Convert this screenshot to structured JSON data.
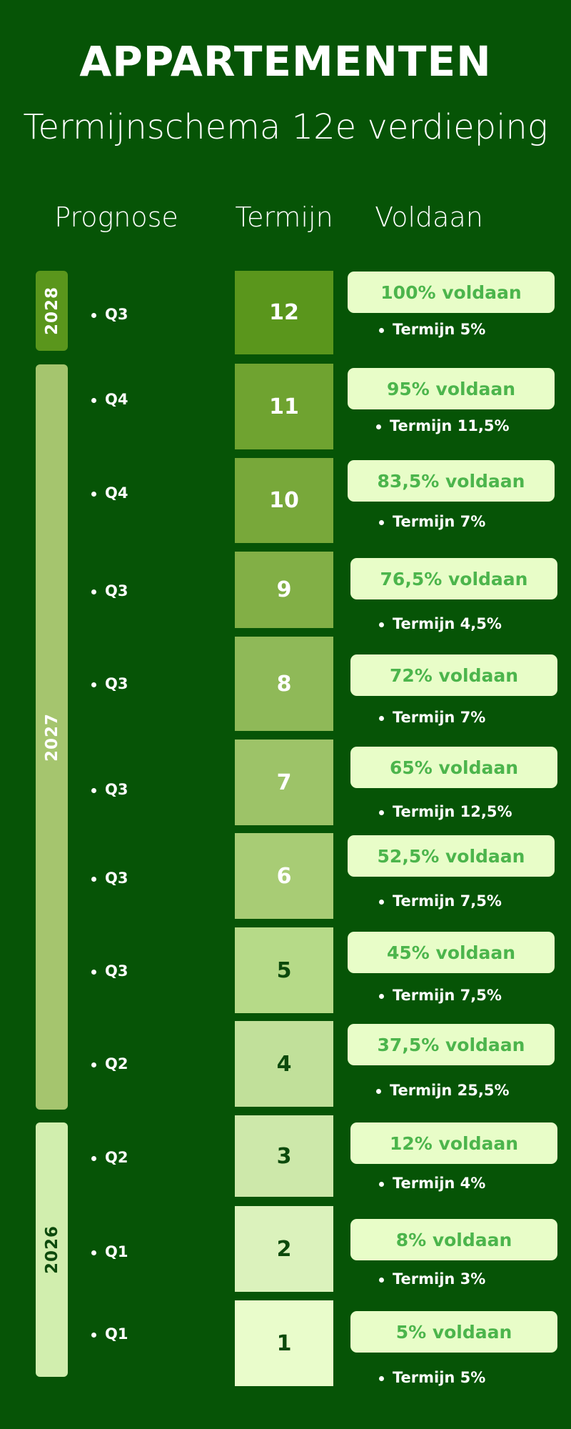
{
  "header": {
    "title": "APPARTEMENTEN",
    "subtitle": "Termijnschema 12e verdieping",
    "columns": [
      "Prognose",
      "Termijn",
      "Voldaan"
    ]
  },
  "colors": {
    "background": "#065406",
    "pill_background": "#e8fdc8",
    "pill_text": "#4cb54c"
  },
  "years": [
    {
      "label": "2028",
      "color": "#5a961c",
      "text_color": "#ffffff"
    },
    {
      "label": "2027",
      "color": "#a5c56e",
      "text_color": "#ffffff"
    },
    {
      "label": "2026",
      "color": "#d1eeae",
      "text_color": "#0c4a0c"
    }
  ],
  "rows": [
    {
      "termijn": "12",
      "quarter": "Q3",
      "voldaan": "100% voldaan",
      "termijn_pct": "Termijn 5%",
      "color": "#5a961c",
      "text_color": "#ffffff"
    },
    {
      "termijn": "11",
      "quarter": "Q4",
      "voldaan": "95% voldaan",
      "termijn_pct": "Termijn 11,5%",
      "color": "#6fa330",
      "text_color": "#ffffff"
    },
    {
      "termijn": "10",
      "quarter": "Q4",
      "voldaan": "83,5% voldaan",
      "termijn_pct": "Termijn 7%",
      "color": "#78a83a",
      "text_color": "#ffffff"
    },
    {
      "termijn": "9",
      "quarter": "Q3",
      "voldaan": "76,5% voldaan",
      "termijn_pct": "Termijn 4,5%",
      "color": "#82af46",
      "text_color": "#ffffff"
    },
    {
      "termijn": "8",
      "quarter": "Q3",
      "voldaan": "72% voldaan",
      "termijn_pct": "Termijn 7%",
      "color": "#8fb958",
      "text_color": "#ffffff"
    },
    {
      "termijn": "7",
      "quarter": "Q3",
      "voldaan": "65% voldaan",
      "termijn_pct": "Termijn 12,5%",
      "color": "#9dc368",
      "text_color": "#ffffff"
    },
    {
      "termijn": "6",
      "quarter": "Q3",
      "voldaan": "52,5% voldaan",
      "termijn_pct": "Termijn 7,5%",
      "color": "#a8cc75",
      "text_color": "#ffffff"
    },
    {
      "termijn": "5",
      "quarter": "Q3",
      "voldaan": "45% voldaan",
      "termijn_pct": "Termijn 7,5%",
      "color": "#b6da88",
      "text_color": "#0c4a0c"
    },
    {
      "termijn": "4",
      "quarter": "Q2",
      "voldaan": "37,5% voldaan",
      "termijn_pct": "Termijn 25,5%",
      "color": "#c1e09a",
      "text_color": "#0c4a0c"
    },
    {
      "termijn": "3",
      "quarter": "Q2",
      "voldaan": "12% voldaan",
      "termijn_pct": "Termijn 4%",
      "color": "#cde8aa",
      "text_color": "#0c4a0c"
    },
    {
      "termijn": "2",
      "quarter": "Q1",
      "voldaan": "8% voldaan",
      "termijn_pct": "Termijn 3%",
      "color": "#dbf2bc",
      "text_color": "#0c4a0c"
    },
    {
      "termijn": "1",
      "quarter": "Q1",
      "voldaan": "5% voldaan",
      "termijn_pct": "Termijn 5%",
      "color": "#e9fccb",
      "text_color": "#0c4a0c"
    }
  ]
}
